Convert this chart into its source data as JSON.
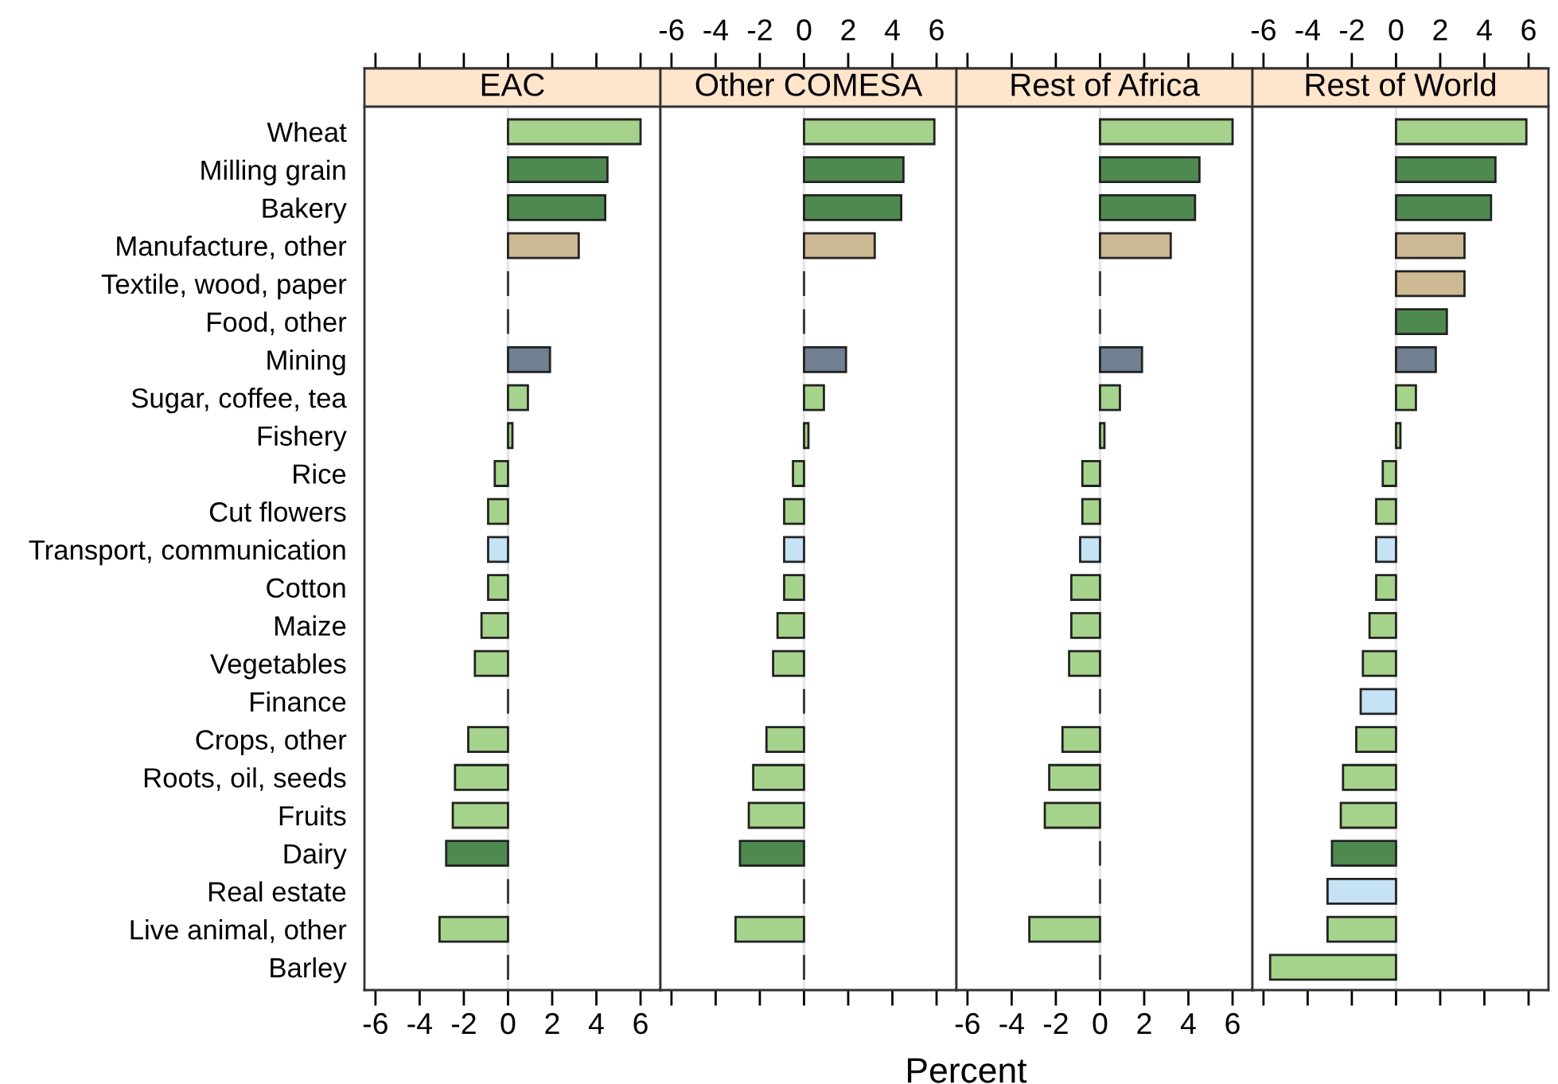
{
  "chart_data": [
    {
      "type": "bar",
      "orientation": "horizontal",
      "title": "EAC",
      "categories": [
        "Wheat",
        "Milling grain",
        "Bakery",
        "Manufacture, other",
        "Textile, wood, paper",
        "Food, other",
        "Mining",
        "Sugar, coffee, tea",
        "Fishery",
        "Rice",
        "Cut flowers",
        "Transport, communication",
        "Cotton",
        "Maize",
        "Vegetables",
        "Finance",
        "Crops, other",
        "Roots, oil, seeds",
        "Fruits",
        "Dairy",
        "Real estate",
        "Live animal, other",
        "Barley"
      ],
      "values": [
        6.0,
        4.5,
        4.4,
        3.2,
        0,
        0,
        1.9,
        0.9,
        0.2,
        -0.6,
        -0.9,
        -0.9,
        -0.9,
        -1.2,
        -1.5,
        0,
        -1.8,
        -2.4,
        -2.5,
        -2.8,
        0,
        -3.1,
        0
      ],
      "colors": [
        "#a6d38c",
        "#4e8a4f",
        "#4e8a4f",
        "#cdb994",
        "#333333",
        "#333333",
        "#708090",
        "#a6d38c",
        "#a6d38c",
        "#a6d38c",
        "#a6d38c",
        "#c6e2f5",
        "#a6d38c",
        "#a6d38c",
        "#a6d38c",
        "#333333",
        "#a6d38c",
        "#a6d38c",
        "#a6d38c",
        "#4e8a4f",
        "#333333",
        "#a6d38c",
        "#333333"
      ],
      "xlim": [
        -6.5,
        6.9
      ],
      "xticks": [
        -6,
        -4,
        -2,
        0,
        2,
        4,
        6
      ],
      "ref_lines": [
        {
          "axis": "x",
          "value": 0,
          "color": "#e6e6e6"
        }
      ]
    },
    {
      "type": "bar",
      "orientation": "horizontal",
      "title": "Other COMESA",
      "tick_labels": "x",
      "categories": [
        null,
        null,
        null,
        null,
        null,
        null,
        null,
        null,
        null,
        null,
        null,
        null,
        null,
        null,
        null,
        null,
        null,
        null,
        null,
        null,
        null,
        null,
        null
      ],
      "values": [
        5.9,
        4.5,
        4.4,
        3.2,
        0,
        0,
        1.9,
        0.9,
        0.2,
        -0.5,
        -0.9,
        -0.9,
        -0.9,
        -1.2,
        -1.4,
        0,
        -1.7,
        -2.3,
        -2.5,
        -2.9,
        0,
        -3.1,
        0
      ],
      "colors": [
        "#a6d38c",
        "#4e8a4f",
        "#4e8a4f",
        "#cdb994",
        "#333333",
        "#333333",
        "#708090",
        "#a6d38c",
        "#a6d38c",
        "#a6d38c",
        "#a6d38c",
        "#c6e2f5",
        "#a6d38c",
        "#a6d38c",
        "#a6d38c",
        "#333333",
        "#a6d38c",
        "#a6d38c",
        "#a6d38c",
        "#4e8a4f",
        "#333333",
        "#a6d38c",
        "#333333"
      ],
      "xlim": [
        -6.5,
        6.9
      ],
      "xticks": [
        -6,
        -4,
        -2,
        0,
        2,
        4,
        6
      ],
      "ref_lines": [
        {
          "axis": "x",
          "value": 0,
          "color": "#e6e6e6"
        }
      ]
    },
    {
      "type": "bar",
      "orientation": "horizontal",
      "title": "Rest of Africa",
      "tick_labels": "x",
      "xlabel": "Percent",
      "categories": [
        null,
        null,
        null,
        null,
        null,
        null,
        null,
        null,
        null,
        null,
        null,
        null,
        null,
        null,
        null,
        null,
        null,
        null,
        null,
        null,
        null,
        null,
        null
      ],
      "values": [
        6.0,
        4.5,
        4.3,
        3.2,
        0,
        0,
        1.9,
        0.9,
        0.2,
        -0.8,
        -0.8,
        -0.9,
        -1.3,
        -1.3,
        -1.4,
        0,
        -1.7,
        -2.3,
        -2.5,
        0,
        0,
        -3.2,
        0
      ],
      "colors": [
        "#a6d38c",
        "#4e8a4f",
        "#4e8a4f",
        "#cdb994",
        "#333333",
        "#333333",
        "#708090",
        "#a6d38c",
        "#a6d38c",
        "#a6d38c",
        "#a6d38c",
        "#c6e2f5",
        "#a6d38c",
        "#a6d38c",
        "#a6d38c",
        "#333333",
        "#a6d38c",
        "#a6d38c",
        "#a6d38c",
        "#333333",
        "#333333",
        "#a6d38c",
        "#333333"
      ],
      "xlim": [
        -6.5,
        6.9
      ],
      "xticks": [
        -6,
        -4,
        -2,
        0,
        2,
        4,
        6
      ],
      "ref_lines": [
        {
          "axis": "x",
          "value": 0,
          "color": "#e6e6e6"
        }
      ]
    },
    {
      "type": "bar",
      "orientation": "horizontal",
      "title": "Rest of World",
      "tick_labels": "x",
      "categories": [
        null,
        null,
        null,
        null,
        null,
        null,
        null,
        null,
        null,
        null,
        null,
        null,
        null,
        null,
        null,
        null,
        null,
        null,
        null,
        null,
        null,
        null,
        null
      ],
      "values": [
        5.9,
        4.5,
        4.3,
        3.1,
        3.1,
        2.3,
        1.8,
        0.9,
        0.2,
        -0.6,
        -0.9,
        -0.9,
        -0.9,
        -1.2,
        -1.5,
        -1.6,
        -1.8,
        -2.4,
        -2.5,
        -2.9,
        -3.1,
        -3.1,
        -5.7
      ],
      "colors": [
        "#a6d38c",
        "#4e8a4f",
        "#4e8a4f",
        "#cdb994",
        "#cdb994",
        "#4e8a4f",
        "#708090",
        "#a6d38c",
        "#a6d38c",
        "#a6d38c",
        "#a6d38c",
        "#c6e2f5",
        "#a6d38c",
        "#a6d38c",
        "#a6d38c",
        "#c6e2f5",
        "#a6d38c",
        "#a6d38c",
        "#a6d38c",
        "#4e8a4f",
        "#c6e2f5",
        "#a6d38c",
        "#a6d38c"
      ],
      "xlim": [
        -6.5,
        6.9
      ],
      "xticks": [
        -6,
        -4,
        -2,
        0,
        2,
        4,
        6
      ],
      "ref_lines": [
        {
          "axis": "x",
          "value": 0,
          "color": "#e6e6e6"
        }
      ]
    }
  ]
}
